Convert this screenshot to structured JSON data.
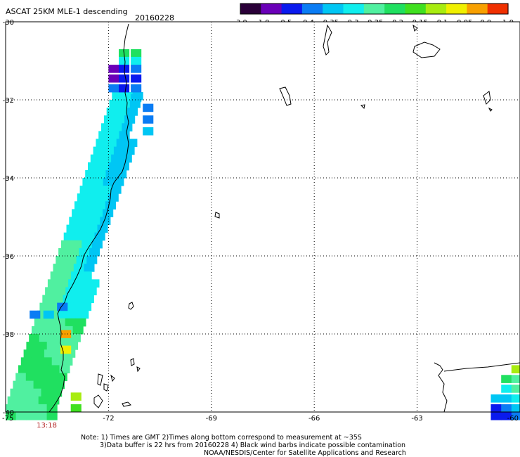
{
  "chart_data": {
    "type": "heatmap",
    "title": "ASCAT 25KM MLE-1 descending",
    "date": "20160228",
    "x_ticks": [
      -75,
      -72,
      -69,
      -66,
      -63,
      -60
    ],
    "x_tick_labels": [
      "-75",
      "-72",
      "-69",
      "-66",
      "-63",
      "-60"
    ],
    "y_ticks": [
      -30,
      -32,
      -34,
      -36,
      -38,
      -40
    ],
    "y_tick_labels": [
      "-30",
      "-32",
      "-34",
      "-36",
      "-38",
      "-40"
    ],
    "xlim": [
      -75,
      -60
    ],
    "ylim": [
      -40,
      -30
    ],
    "grid": "dotted",
    "colorbar": {
      "ticks": [
        "-3.0",
        "-1.0",
        "-0.5",
        "-0.4",
        "-0.35",
        "-0.3",
        "-0.25",
        "-0.2",
        "-0.15",
        "-0.1",
        "-0.05",
        "0.0",
        "1.0"
      ],
      "colors": [
        "#2a0038",
        "#6a00b8",
        "#0a1aee",
        "#0a7cf4",
        "#00c6f4",
        "#10eeee",
        "#50f0a0",
        "#20e060",
        "#40e020",
        "#a8ec10",
        "#f0f000",
        "#f8a000",
        "#f03000"
      ]
    },
    "time_label": "13:18",
    "time_label_lon": -73.8,
    "swath": {
      "cells": [
        {
          "lon": -71.7,
          "lat": -30.7,
          "v": -0.2
        },
        {
          "lon": -71.35,
          "lat": -30.7,
          "v": -0.2
        },
        {
          "lon": -71.7,
          "lat": -30.9,
          "v": -0.3
        },
        {
          "lon": -71.35,
          "lat": -30.9,
          "v": -0.28
        },
        {
          "lon": -72.0,
          "lat": -31.1,
          "v": -1.0
        },
        {
          "lon": -71.7,
          "lat": -31.1,
          "v": -0.45
        },
        {
          "lon": -71.35,
          "lat": -31.1,
          "v": -0.4
        },
        {
          "lon": -72.0,
          "lat": -31.35,
          "v": -1.0
        },
        {
          "lon": -71.7,
          "lat": -31.35,
          "v": -0.45
        },
        {
          "lon": -71.35,
          "lat": -31.35,
          "v": -0.45
        },
        {
          "lon": -72.0,
          "lat": -31.6,
          "v": -0.38
        },
        {
          "lon": -71.7,
          "lat": -31.6,
          "v": -0.45
        },
        {
          "lon": -71.35,
          "lat": -31.6,
          "v": -0.4
        },
        {
          "lon": -71.35,
          "lat": -31.85,
          "v": -0.35
        },
        {
          "lon": -71.0,
          "lat": -32.1,
          "v": -0.38
        },
        {
          "lon": -71.0,
          "lat": -32.4,
          "v": -0.4
        },
        {
          "lon": -71.0,
          "lat": -32.7,
          "v": -0.35
        },
        {
          "lon": -74.3,
          "lat": -37.4,
          "v": -0.4
        },
        {
          "lon": -73.9,
          "lat": -37.4,
          "v": -0.35
        },
        {
          "lon": -73.5,
          "lat": -37.2,
          "v": -0.38
        },
        {
          "lon": -73.4,
          "lat": -37.9,
          "v": 0.0
        },
        {
          "lon": -73.4,
          "lat": -38.3,
          "v": -0.05
        },
        {
          "lon": -73.1,
          "lat": -39.5,
          "v": -0.1
        },
        {
          "lon": -73.1,
          "lat": -39.8,
          "v": -0.12
        },
        {
          "lon": -60.25,
          "lat": -38.8,
          "v": -0.1
        },
        {
          "lon": -60.55,
          "lat": -39.05,
          "v": -0.2
        },
        {
          "lon": -60.25,
          "lat": -39.05,
          "v": -0.22
        },
        {
          "lon": -60.55,
          "lat": -39.3,
          "v": -0.28
        },
        {
          "lon": -60.25,
          "lat": -39.3,
          "v": -0.25
        },
        {
          "lon": -60.85,
          "lat": -39.55,
          "v": -0.35
        },
        {
          "lon": -60.55,
          "lat": -39.55,
          "v": -0.32
        },
        {
          "lon": -60.25,
          "lat": -39.55,
          "v": -0.3
        },
        {
          "lon": -60.85,
          "lat": -39.8,
          "v": -0.45
        },
        {
          "lon": -60.55,
          "lat": -39.8,
          "v": -0.4
        },
        {
          "lon": -60.25,
          "lat": -39.8,
          "v": -0.35
        },
        {
          "lon": -60.85,
          "lat": -40.0,
          "v": -0.45
        },
        {
          "lon": -60.55,
          "lat": -40.0,
          "v": -0.45
        },
        {
          "lon": -60.25,
          "lat": -40.0,
          "v": -0.4
        }
      ]
    },
    "notes": [
      "Note: 1) Times are GMT 2)Times along bottom correspond to measurement at ~35S",
      "3)Data buffer is 22 hrs from 20160228 4) Black wind barbs indicate possible contamination",
      "NOAA/NESDIS/Center for Satellite Applications and Research"
    ]
  }
}
